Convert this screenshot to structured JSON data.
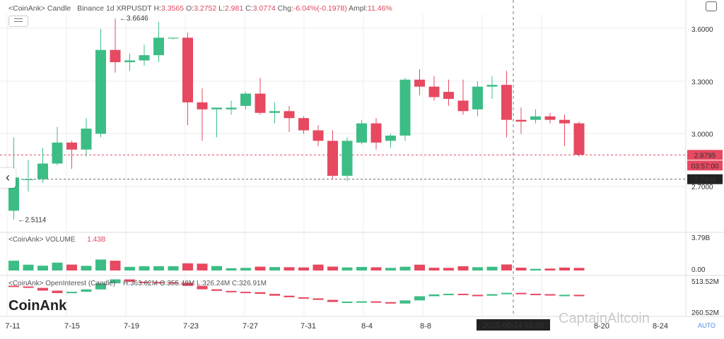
{
  "header": {
    "source": "<CoinAnk>",
    "title": "Candle",
    "exchange_symbol": "Binance 1d XRPUSDT",
    "h_label": "H:",
    "h_value": "3.3565",
    "o_label": "O:",
    "o_value": "3.2752",
    "l_label": "L:",
    "l_value": "2.981",
    "c_label": "C:",
    "c_value": "3.0774",
    "chg_label": "Chg:",
    "chg_value": "-6.04%(-0.1978)",
    "ampl_label": "Ampl:",
    "ampl_value": "11.46%"
  },
  "volume_header": {
    "label": "<CoinAnk> VOLUME",
    "value": "1.43B"
  },
  "oi_header": {
    "label": "<CoinAnk> OpenInterest (Candle)",
    "h": "H:363.62M",
    "o": "O:355.48M",
    "l": "L:326.24M",
    "c": "C:326.91M"
  },
  "brand": "CoinAnk",
  "watermark": "CaptainAltcoin",
  "auto_label": "AUTO",
  "chart_data": {
    "type": "candlestick",
    "price_axis": {
      "ticks": [
        "3.6000",
        "3.3000",
        "3.0000",
        "2.7000"
      ],
      "ylim": [
        2.45,
        3.72
      ]
    },
    "volume_axis": {
      "ticks": [
        "3.79B",
        "0.00"
      ],
      "max": 3.79
    },
    "oi_axis": {
      "ticks": [
        "513.52M",
        "260.52M"
      ]
    },
    "x_ticks": [
      "7-11",
      "7-15",
      "7-19",
      "7-23",
      "7-27",
      "7-31",
      "8-4",
      "8-8",
      "8-20",
      "8-24"
    ],
    "crosshair_date": "2025-08-14 01:00",
    "crosshair_price": "2.7404",
    "last_price": "2.8795",
    "countdown": "03:57:00",
    "annotations": {
      "high_mark": "3.6646",
      "low_mark": "2.5114"
    },
    "candles": [
      {
        "o": 2.56,
        "h": 2.98,
        "l": 2.51,
        "c": 2.75
      },
      {
        "o": 2.74,
        "h": 2.85,
        "l": 2.67,
        "c": 2.74
      },
      {
        "o": 2.74,
        "h": 2.92,
        "l": 2.72,
        "c": 2.83
      },
      {
        "o": 2.83,
        "h": 3.04,
        "l": 2.82,
        "c": 2.95
      },
      {
        "o": 2.95,
        "h": 2.96,
        "l": 2.8,
        "c": 2.91
      },
      {
        "o": 2.91,
        "h": 3.09,
        "l": 2.87,
        "c": 3.03
      },
      {
        "o": 3.0,
        "h": 3.6,
        "l": 2.98,
        "c": 3.48
      },
      {
        "o": 3.48,
        "h": 3.66,
        "l": 3.35,
        "c": 3.41
      },
      {
        "o": 3.41,
        "h": 3.46,
        "l": 3.36,
        "c": 3.42
      },
      {
        "o": 3.42,
        "h": 3.51,
        "l": 3.39,
        "c": 3.45
      },
      {
        "o": 3.45,
        "h": 3.64,
        "l": 3.41,
        "c": 3.55
      },
      {
        "o": 3.55,
        "h": 3.55,
        "l": 3.54,
        "c": 3.55
      },
      {
        "o": 3.55,
        "h": 3.58,
        "l": 3.05,
        "c": 3.18
      },
      {
        "o": 3.18,
        "h": 3.26,
        "l": 2.96,
        "c": 3.14
      },
      {
        "o": 3.14,
        "h": 3.14,
        "l": 2.98,
        "c": 3.15
      },
      {
        "o": 3.14,
        "h": 3.19,
        "l": 3.11,
        "c": 3.15
      },
      {
        "o": 3.16,
        "h": 3.24,
        "l": 3.14,
        "c": 3.23
      },
      {
        "o": 3.23,
        "h": 3.32,
        "l": 3.11,
        "c": 3.12
      },
      {
        "o": 3.12,
        "h": 3.18,
        "l": 3.06,
        "c": 3.13
      },
      {
        "o": 3.13,
        "h": 3.16,
        "l": 3.01,
        "c": 3.09
      },
      {
        "o": 3.09,
        "h": 3.1,
        "l": 3.0,
        "c": 3.02
      },
      {
        "o": 3.02,
        "h": 3.05,
        "l": 2.93,
        "c": 2.96
      },
      {
        "o": 2.96,
        "h": 3.02,
        "l": 2.74,
        "c": 2.76
      },
      {
        "o": 2.76,
        "h": 2.98,
        "l": 2.73,
        "c": 2.96
      },
      {
        "o": 2.95,
        "h": 3.08,
        "l": 2.94,
        "c": 3.06
      },
      {
        "o": 3.06,
        "h": 3.09,
        "l": 2.91,
        "c": 2.95
      },
      {
        "o": 2.96,
        "h": 3.0,
        "l": 2.92,
        "c": 2.99
      },
      {
        "o": 2.99,
        "h": 3.32,
        "l": 2.96,
        "c": 3.31
      },
      {
        "o": 3.31,
        "h": 3.37,
        "l": 3.22,
        "c": 3.27
      },
      {
        "o": 3.27,
        "h": 3.33,
        "l": 3.19,
        "c": 3.21
      },
      {
        "o": 3.24,
        "h": 3.31,
        "l": 3.16,
        "c": 3.2
      },
      {
        "o": 3.19,
        "h": 3.31,
        "l": 3.11,
        "c": 3.13
      },
      {
        "o": 3.14,
        "h": 3.3,
        "l": 3.1,
        "c": 3.27
      },
      {
        "o": 3.27,
        "h": 3.33,
        "l": 3.2,
        "c": 3.28
      },
      {
        "o": 3.28,
        "h": 3.36,
        "l": 2.98,
        "c": 3.08
      },
      {
        "o": 3.08,
        "h": 3.15,
        "l": 3.0,
        "c": 3.07
      },
      {
        "o": 3.08,
        "h": 3.14,
        "l": 3.06,
        "c": 3.1
      },
      {
        "o": 3.1,
        "h": 3.12,
        "l": 3.06,
        "c": 3.08
      },
      {
        "o": 3.08,
        "h": 3.11,
        "l": 2.93,
        "c": 3.06
      },
      {
        "o": 3.06,
        "h": 3.07,
        "l": 2.87,
        "c": 2.88
      }
    ],
    "volume": [
      1.43,
      0.85,
      0.7,
      1.15,
      0.86,
      0.68,
      1.6,
      1.43,
      0.53,
      0.62,
      0.63,
      0.62,
      1.05,
      1.0,
      0.65,
      0.33,
      0.38,
      0.56,
      0.5,
      0.48,
      0.45,
      0.86,
      0.57,
      0.45,
      0.52,
      0.47,
      0.38,
      0.55,
      0.85,
      0.4,
      0.38,
      0.62,
      0.48,
      0.55,
      0.88,
      0.41,
      0.24,
      0.28,
      0.43,
      0.38
    ],
    "open_interest": [
      434,
      423,
      402,
      383,
      393,
      411,
      458,
      488,
      470,
      468,
      466,
      462,
      438,
      412,
      400,
      393,
      390,
      377,
      363,
      351,
      343,
      331,
      315,
      318,
      320,
      314,
      303,
      327,
      359,
      373,
      378,
      370,
      363,
      375,
      385,
      378,
      375,
      370,
      370,
      364
    ]
  }
}
